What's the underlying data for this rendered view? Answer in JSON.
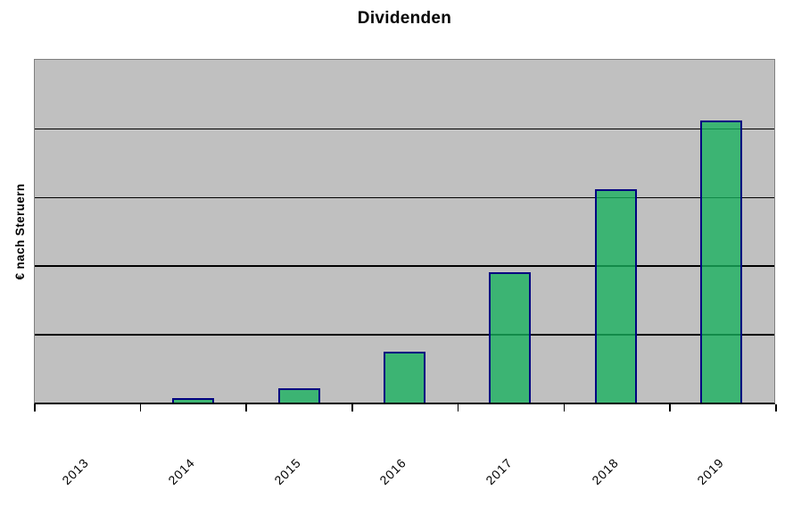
{
  "chart": {
    "title": "Dividenden",
    "y_axis_label": "€ nach Steruern"
  },
  "colors": {
    "page_background": "#FFFFFF",
    "plot_background": "#C0C0C0",
    "plot_border": "#808080",
    "gridline": "#000000",
    "axis": "#000000",
    "bar_fill_rgba": "rgba(23,177,93,0.78)",
    "bar_fill_hex_on_gray": "#3CB473",
    "bar_border": "#000080",
    "text": "#000000"
  },
  "chart_data": {
    "type": "bar",
    "title": "Dividenden",
    "xlabel": "",
    "ylabel": "€ nach Steruern",
    "categories": [
      "2013",
      "2014",
      "2015",
      "2016",
      "2017",
      "2018",
      "2019"
    ],
    "values": [
      0,
      0.06,
      0.21,
      0.74,
      1.9,
      3.11,
      4.11
    ],
    "value_note": "y-axis has no numeric tick labels; values are in gridline units (axis spans 5 equal gridline intervals)",
    "ylim": [
      0,
      5
    ],
    "y_gridline_units": [
      1,
      2,
      3,
      4
    ],
    "y_tick_labels_visible": false,
    "grid": "horizontal-only",
    "legend": "none",
    "x_tick_label_rotation_deg": -45,
    "bars_per_category": 1
  }
}
